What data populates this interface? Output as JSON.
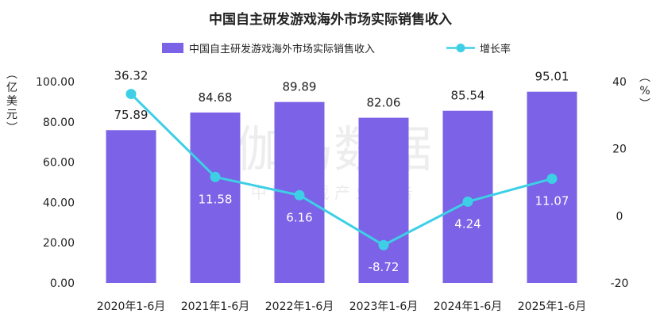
{
  "chart_data": {
    "type": "bar",
    "title": "中国自主研发游戏海外市场实际销售收入",
    "categories": [
      "2020年1-6月",
      "2021年1-6月",
      "2022年1-6月",
      "2023年1-6月",
      "2024年1-6月",
      "2025年1-6月"
    ],
    "series": [
      {
        "name": "中国自主研发游戏海外市场实际销售收入",
        "type": "bar",
        "axis": "left",
        "values": [
          75.89,
          84.68,
          89.89,
          82.06,
          85.54,
          95.01
        ],
        "labels": [
          "75.89",
          "84.68",
          "89.89",
          "82.06",
          "85.54",
          "95.01"
        ],
        "color": "#7B62E6"
      },
      {
        "name": "增长率",
        "type": "line",
        "axis": "right",
        "values": [
          36.32,
          11.58,
          6.16,
          -8.72,
          4.24,
          11.07
        ],
        "labels": [
          "36.32",
          "11.58",
          "6.16",
          "-8.72",
          "4.24",
          "11.07"
        ],
        "color": "#3DCFE6"
      }
    ],
    "ylabel": "（亿美元）",
    "ylim": [
      0,
      100
    ],
    "yticks": [
      "0.00",
      "20.00",
      "40.00",
      "60.00",
      "80.00",
      "100.00"
    ],
    "y2label": "（%）",
    "y2lim": [
      -20,
      40
    ],
    "y2ticks": [
      "-20",
      "0",
      "20",
      "40"
    ],
    "legend_position": "top-center",
    "grid": false
  },
  "watermark": {
    "main": "伽马数据",
    "sub": "中 国 游 戏 产 业 报 告"
  }
}
